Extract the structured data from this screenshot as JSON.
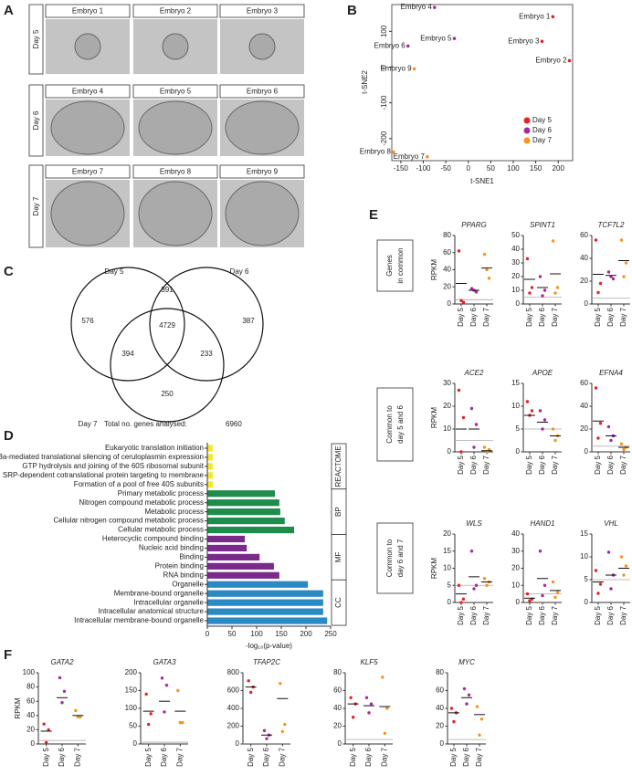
{
  "panel_labels": [
    "A",
    "B",
    "C",
    "D",
    "E",
    "F"
  ],
  "panel_a": {
    "days": [
      "Day 5",
      "Day 6",
      "Day 7"
    ],
    "embryos": [
      "Embryo 1",
      "Embryo 2",
      "Embryo 3",
      "Embryo 4",
      "Embryo 5",
      "Embryo 6",
      "Embryo 7",
      "Embryo 8",
      "Embryo 9"
    ]
  },
  "venn": {
    "sets": [
      {
        "name": "Day 5",
        "color": "#e8202a"
      },
      {
        "name": "Day 6",
        "color": "#a62a9c"
      },
      {
        "name": "Day 7",
        "color": "#f7941d"
      }
    ],
    "regions": [
      576,
      391,
      387,
      4729,
      394,
      233,
      250
    ],
    "total_text": "Total no. genes analysed:",
    "total": 6960
  },
  "panel_e_rows": [
    [
      "Genes",
      "in common"
    ],
    [
      "Common to",
      "day 5 and 6"
    ],
    [
      "Common to",
      "day 6 and 7"
    ]
  ],
  "chart_data": [
    {
      "type": "scatter",
      "xlabel": "t-SNE1",
      "ylabel": "t-SNE2",
      "xlim": [
        -170,
        232
      ],
      "ylim": [
        -262,
        175
      ],
      "xticks": [
        -150,
        -100,
        -50,
        0,
        50,
        100,
        150,
        200
      ],
      "yticks": [
        -200,
        -100,
        0,
        100
      ],
      "legend": "lower right",
      "series": [
        {
          "name": "Day 5",
          "color": "#e8202a",
          "x": [
            188,
            225,
            164
          ],
          "values": [
            141,
            18,
            72
          ],
          "labels": [
            "Embryo 1",
            "Embryo 2",
            "Embryo 3"
          ]
        },
        {
          "name": "Day 6",
          "color": "#a62a9c",
          "x": [
            -75,
            -31,
            -134
          ],
          "values": [
            167,
            80,
            59
          ],
          "labels": [
            "Embryo 4",
            "Embryo 5",
            "Embryo 6"
          ]
        },
        {
          "name": "Day 7",
          "color": "#f7941d",
          "x": [
            -91,
            -166,
            -120
          ],
          "values": [
            -251,
            -238,
            -5
          ],
          "labels": [
            "Embryo 7",
            "Embryo 8",
            "Embryo 9"
          ]
        }
      ]
    },
    {
      "type": "hbar",
      "xlabel": "-log₁₀(p-value)",
      "xlim": [
        0,
        250
      ],
      "xticks": [
        0,
        50,
        100,
        150,
        200,
        250
      ],
      "groups": [
        {
          "name": "REACTOME",
          "color": "#f5e82a",
          "categories": [
            "Eukaryotic translation initiation",
            "L13a-mediated translational silencing of ceruloplasmin expression",
            "GTP hydrolysis and joining of the 60S ribosomal subunit",
            "SRP-dependent cotranslational protein targeting to membrane",
            "Formation of a pool of free 40S subunits"
          ],
          "values": [
            11,
            11,
            11,
            11,
            11
          ]
        },
        {
          "name": "BP",
          "color": "#1e8c4b",
          "categories": [
            "Primary metabolic process",
            "Nitrogen compound metabolic process",
            "Metabolic process",
            "Cellular nitrogen compound metabolic process",
            "Cellular metabolic process"
          ],
          "values": [
            137,
            146,
            148,
            157,
            176
          ]
        },
        {
          "name": "MF",
          "color": "#7b2a8c",
          "categories": [
            "Heterocyclic compound binding",
            "Nucleic acid binding",
            "Binding",
            "Protein binding",
            "RNA binding"
          ],
          "values": [
            76,
            80,
            106,
            135,
            146
          ]
        },
        {
          "name": "CC",
          "color": "#2b8ac4",
          "categories": [
            "Organelle",
            "Membrane-bound organelle",
            "Intracellular organelle",
            "Intracellular anatomical structure",
            "Intracellular membrane-bound organelle"
          ],
          "values": [
            204,
            235,
            235,
            235,
            243
          ]
        }
      ]
    },
    {
      "type": "dot",
      "title": "PPARG",
      "ylabel": "RPKM",
      "ylim": [
        0,
        80
      ],
      "yticks": [
        0,
        20,
        40,
        60,
        80
      ],
      "threshold": 5,
      "categories": [
        "Day 5",
        "Day 6",
        "Day 7"
      ],
      "colors": [
        "#e8202a",
        "#a62a9c",
        "#f7941d"
      ],
      "points": [
        [
          62,
          2,
          4
        ],
        [
          18,
          14,
          16
        ],
        [
          58,
          30,
          40
        ]
      ],
      "means": [
        24,
        16,
        42
      ]
    },
    {
      "type": "dot",
      "title": "SPINT1",
      "ylim": [
        0,
        50
      ],
      "yticks": [
        0,
        10,
        20,
        30,
        40,
        50
      ],
      "threshold": 5,
      "categories": [
        "Day 5",
        "Day 6",
        "Day 7"
      ],
      "colors": [
        "#e8202a",
        "#a62a9c",
        "#f7941d"
      ],
      "points": [
        [
          33,
          12,
          8
        ],
        [
          20,
          10,
          6
        ],
        [
          46,
          12,
          8
        ]
      ],
      "means": [
        18,
        12,
        22
      ]
    },
    {
      "type": "dot",
      "title": "TCF7L2",
      "ylim": [
        0,
        60
      ],
      "yticks": [
        0,
        20,
        40,
        60
      ],
      "threshold": 5,
      "categories": [
        "Day 5",
        "Day 6",
        "Day 7"
      ],
      "colors": [
        "#e8202a",
        "#a62a9c",
        "#f7941d"
      ],
      "points": [
        [
          56,
          18,
          10
        ],
        [
          28,
          22,
          24
        ],
        [
          56,
          36,
          24
        ]
      ],
      "means": [
        26,
        25,
        38
      ]
    },
    {
      "type": "dot",
      "title": "ACE2",
      "ylabel": "RPKM",
      "ylim": [
        0,
        30
      ],
      "yticks": [
        0,
        10,
        20,
        30
      ],
      "threshold": 5,
      "categories": [
        "Day 5",
        "Day 6",
        "Day 7"
      ],
      "colors": [
        "#e8202a",
        "#a62a9c",
        "#f7941d"
      ],
      "points": [
        [
          27,
          15,
          0
        ],
        [
          19,
          12,
          2
        ],
        [
          2,
          1,
          0
        ]
      ],
      "means": [
        10,
        10,
        0.5
      ]
    },
    {
      "type": "dot",
      "title": "APOE",
      "ylim": [
        0,
        15
      ],
      "yticks": [
        0,
        5,
        10,
        15
      ],
      "threshold": 5,
      "categories": [
        "Day 5",
        "Day 6",
        "Day 7"
      ],
      "colors": [
        "#e8202a",
        "#a62a9c",
        "#f7941d"
      ],
      "points": [
        [
          11,
          9,
          8
        ],
        [
          9,
          7,
          5
        ],
        [
          5,
          3.5,
          2.5
        ]
      ],
      "means": [
        8,
        6.5,
        3.5
      ]
    },
    {
      "type": "dot",
      "title": "EFNA4",
      "ylim": [
        0,
        60
      ],
      "yticks": [
        0,
        20,
        40,
        60
      ],
      "threshold": 5,
      "categories": [
        "Day 5",
        "Day 6",
        "Day 7"
      ],
      "colors": [
        "#e8202a",
        "#a62a9c",
        "#f7941d"
      ],
      "points": [
        [
          56,
          25,
          12
        ],
        [
          22,
          14,
          10
        ],
        [
          7,
          4,
          2
        ]
      ],
      "means": [
        27,
        14,
        4
      ]
    },
    {
      "type": "dot",
      "title": "WLS",
      "ylabel": "RPKM",
      "ylim": [
        0,
        20
      ],
      "yticks": [
        0,
        5,
        10,
        15,
        20
      ],
      "threshold": 5,
      "categories": [
        "Day 5",
        "Day 6",
        "Day 7"
      ],
      "colors": [
        "#e8202a",
        "#a62a9c",
        "#f7941d"
      ],
      "points": [
        [
          5,
          1,
          0
        ],
        [
          15,
          5,
          4
        ],
        [
          7,
          6,
          5
        ]
      ],
      "means": [
        2.5,
        7.5,
        6
      ]
    },
    {
      "type": "dot",
      "title": "HAND1",
      "ylim": [
        0,
        40
      ],
      "yticks": [
        0,
        10,
        20,
        30,
        40
      ],
      "threshold": 5,
      "categories": [
        "Day 5",
        "Day 6",
        "Day 7"
      ],
      "colors": [
        "#e8202a",
        "#a62a9c",
        "#f7941d"
      ],
      "points": [
        [
          5,
          2,
          1
        ],
        [
          30,
          10,
          4
        ],
        [
          12,
          6,
          3
        ]
      ],
      "means": [
        2.5,
        14,
        7
      ]
    },
    {
      "type": "dot",
      "title": "VHL",
      "ylim": [
        0,
        15
      ],
      "yticks": [
        0,
        5,
        10,
        15
      ],
      "threshold": 5,
      "categories": [
        "Day 5",
        "Day 6",
        "Day 7"
      ],
      "colors": [
        "#e8202a",
        "#a62a9c",
        "#f7941d"
      ],
      "points": [
        [
          7,
          4,
          2
        ],
        [
          11,
          6,
          3
        ],
        [
          10,
          8,
          6
        ]
      ],
      "means": [
        4.5,
        6,
        7.5
      ]
    },
    {
      "type": "dot",
      "title": "GATA2",
      "ylabel": "RPKM",
      "ylim": [
        0,
        100
      ],
      "yticks": [
        0,
        20,
        40,
        60,
        80,
        100
      ],
      "threshold": 5,
      "categories": [
        "Day 5",
        "Day 6",
        "Day 7"
      ],
      "colors": [
        "#e8202a",
        "#a62a9c",
        "#f7941d"
      ],
      "points": [
        [
          28,
          20,
          2
        ],
        [
          93,
          74,
          58
        ],
        [
          47,
          38,
          38
        ]
      ],
      "means": [
        18,
        65,
        40
      ]
    },
    {
      "type": "dot",
      "title": "GATA3",
      "ylim": [
        0,
        200
      ],
      "yticks": [
        0,
        50,
        100,
        150,
        200
      ],
      "threshold": 5,
      "categories": [
        "Day 5",
        "Day 6",
        "Day 7"
      ],
      "colors": [
        "#e8202a",
        "#a62a9c",
        "#f7941d"
      ],
      "points": [
        [
          140,
          85,
          55
        ],
        [
          185,
          165,
          90
        ],
        [
          150,
          60,
          60
        ]
      ],
      "means": [
        92,
        120,
        92
      ]
    },
    {
      "type": "dot",
      "title": "TFAP2C",
      "ylim": [
        0,
        800
      ],
      "yticks": [
        0,
        200,
        400,
        600,
        800
      ],
      "threshold": 5,
      "categories": [
        "Day 5",
        "Day 6",
        "Day 7"
      ],
      "colors": [
        "#e8202a",
        "#a62a9c",
        "#f7941d"
      ],
      "points": [
        [
          710,
          640,
          580
        ],
        [
          150,
          100,
          60
        ],
        [
          680,
          220,
          140
        ]
      ],
      "means": [
        640,
        100,
        510
      ]
    },
    {
      "type": "dot",
      "title": "KLF5",
      "ylim": [
        0,
        80
      ],
      "yticks": [
        0,
        20,
        40,
        60,
        80
      ],
      "threshold": 5,
      "categories": [
        "Day 5",
        "Day 6",
        "Day 7"
      ],
      "colors": [
        "#e8202a",
        "#a62a9c",
        "#f7941d"
      ],
      "points": [
        [
          52,
          45,
          30
        ],
        [
          52,
          45,
          35
        ],
        [
          75,
          40,
          12
        ]
      ],
      "means": [
        45,
        43,
        42
      ]
    },
    {
      "type": "dot",
      "title": "MYC",
      "ylim": [
        0,
        80
      ],
      "yticks": [
        0,
        20,
        40,
        60,
        80
      ],
      "threshold": 5,
      "categories": [
        "Day 5",
        "Day 6",
        "Day 7"
      ],
      "colors": [
        "#e8202a",
        "#a62a9c",
        "#f7941d"
      ],
      "points": [
        [
          40,
          35,
          25
        ],
        [
          62,
          55,
          45
        ],
        [
          42,
          28,
          10
        ]
      ],
      "means": [
        35,
        52,
        33
      ]
    }
  ]
}
